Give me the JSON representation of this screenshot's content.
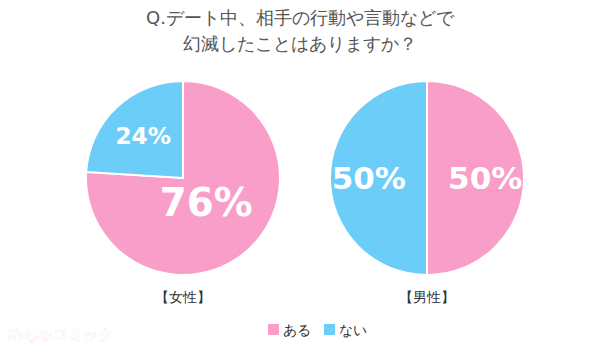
{
  "chart_data": {
    "type": "pie",
    "title": "Q.デート中、相手の行動や言動などで\n幻滅したことはありますか？",
    "categories": [
      "ある",
      "ない"
    ],
    "colors": [
      "#f89ec8",
      "#6ccdf9"
    ],
    "series": [
      {
        "name": "【女性】",
        "values": [
          76,
          24
        ],
        "value_labels": [
          "76%",
          "24%"
        ]
      },
      {
        "name": "【男性】",
        "values": [
          50,
          50
        ],
        "value_labels": [
          "50%",
          "50%"
        ]
      }
    ],
    "data_labels": true,
    "legend": "bottom",
    "source": "めちゃコミック"
  }
}
